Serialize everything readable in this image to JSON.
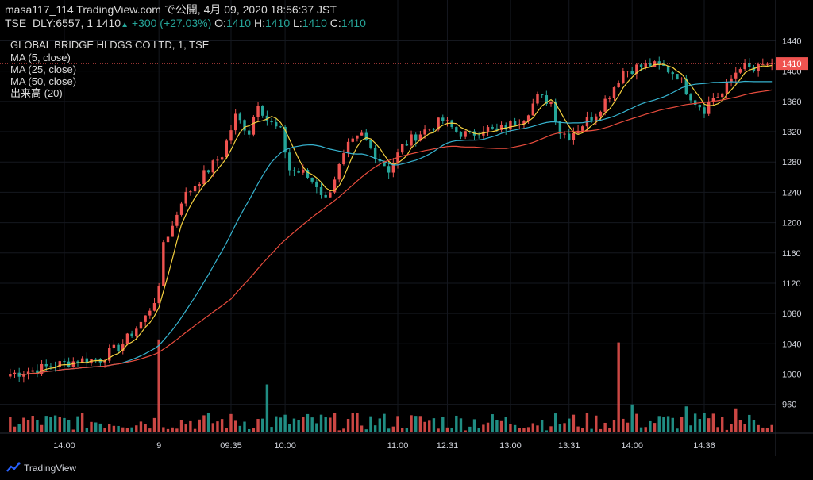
{
  "header": {
    "line1": "masa117_114 TradingView.com で公開, 4月 09, 2020 18:56:37 JST",
    "symbol": "TSE_DLY:6557, 1 1410",
    "change": "+300 (+27.03%)",
    "o_label": "O:",
    "o_val": "1410",
    "h_label": "H:",
    "h_val": "1410",
    "l_label": "L:",
    "l_val": "1410",
    "c_label": "C:",
    "c_val": "1410"
  },
  "legend": {
    "title": "GLOBAL BRIDGE HLDGS CO LTD, 1, TSE",
    "ma5": "MA (5, close)",
    "ma25": "MA (25, close)",
    "ma50": "MA (50, close)",
    "volume": "出来高 (20)"
  },
  "footer": {
    "brand": "TradingView"
  },
  "colors": {
    "up": "#ef5350",
    "down": "#26a69a",
    "ma5": "#f4d03f",
    "ma25": "#36b3cf",
    "ma50": "#e84c3d",
    "axis_text": "#d1d4dc",
    "price_tag": "#ef5350"
  },
  "chart_data": {
    "type": "candlestick",
    "bars": 170,
    "y_ticks": [
      960,
      1000,
      1040,
      1080,
      1120,
      1160,
      1200,
      1240,
      1280,
      1320,
      1360,
      1400,
      1440
    ],
    "ylim": [
      923,
      1452
    ],
    "x_ticks": [
      {
        "label": "14:00",
        "bar": 12
      },
      {
        "label": "9",
        "bar": 33
      },
      {
        "label": "09:35",
        "bar": 49
      },
      {
        "label": "10:00",
        "bar": 61
      },
      {
        "label": "11:00",
        "bar": 86
      },
      {
        "label": "12:31",
        "bar": 97
      },
      {
        "label": "13:00",
        "bar": 111
      },
      {
        "label": "13:31",
        "bar": 124
      },
      {
        "label": "14:00",
        "bar": 138
      },
      {
        "label": "14:36",
        "bar": 154
      }
    ],
    "last_price": 1410,
    "last_price_label": "1410",
    "close_anchors": [
      [
        0,
        1000
      ],
      [
        5,
        1005
      ],
      [
        10,
        1012
      ],
      [
        15,
        1018
      ],
      [
        20,
        1020
      ],
      [
        25,
        1040
      ],
      [
        30,
        1075
      ],
      [
        33,
        1110
      ],
      [
        34,
        1175
      ],
      [
        36,
        1195
      ],
      [
        38,
        1230
      ],
      [
        41,
        1250
      ],
      [
        44,
        1270
      ],
      [
        47,
        1290
      ],
      [
        50,
        1340
      ],
      [
        53,
        1320
      ],
      [
        55,
        1360
      ],
      [
        57,
        1335
      ],
      [
        60,
        1320
      ],
      [
        62,
        1270
      ],
      [
        65,
        1265
      ],
      [
        68,
        1250
      ],
      [
        70,
        1230
      ],
      [
        72,
        1260
      ],
      [
        75,
        1300
      ],
      [
        78,
        1315
      ],
      [
        81,
        1290
      ],
      [
        84,
        1270
      ],
      [
        87,
        1300
      ],
      [
        90,
        1315
      ],
      [
        93,
        1325
      ],
      [
        96,
        1335
      ],
      [
        99,
        1320
      ],
      [
        102,
        1315
      ],
      [
        105,
        1325
      ],
      [
        108,
        1320
      ],
      [
        111,
        1330
      ],
      [
        114,
        1340
      ],
      [
        117,
        1365
      ],
      [
        120,
        1360
      ],
      [
        122,
        1320
      ],
      [
        124,
        1315
      ],
      [
        127,
        1330
      ],
      [
        130,
        1345
      ],
      [
        133,
        1370
      ],
      [
        136,
        1400
      ],
      [
        139,
        1405
      ],
      [
        142,
        1408
      ],
      [
        145,
        1405
      ],
      [
        148,
        1395
      ],
      [
        150,
        1375
      ],
      [
        152,
        1360
      ],
      [
        154,
        1350
      ],
      [
        156,
        1365
      ],
      [
        158,
        1370
      ],
      [
        160,
        1390
      ],
      [
        162,
        1408
      ],
      [
        165,
        1400
      ],
      [
        168,
        1410
      ]
    ],
    "volume_spikes": [
      [
        33,
        0.93
      ],
      [
        57,
        0.48
      ],
      [
        135,
        0.9
      ],
      [
        138,
        0.28
      ],
      [
        150,
        0.26
      ],
      [
        161,
        0.24
      ]
    ]
  }
}
